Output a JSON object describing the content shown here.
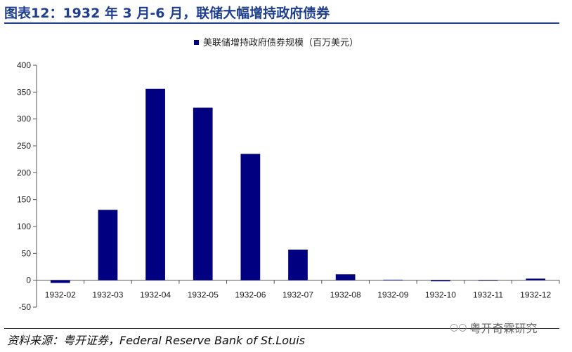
{
  "title": "图表12：1932 年 3 月-6 月，联储大幅增持政府债券",
  "source": "资料来源：粤开证券，Federal Reserve Bank of St.Louis",
  "watermark": "粤开奇霖研究",
  "colors": {
    "bar": "#000080",
    "title": "#1f3f8f"
  },
  "chart_data": {
    "type": "bar",
    "categories": [
      "1932-02",
      "1932-03",
      "1932-04",
      "1932-05",
      "1932-06",
      "1932-07",
      "1932-08",
      "1932-09",
      "1932-10",
      "1932-11",
      "1932-12"
    ],
    "series": [
      {
        "name": "美联储增持政府债券规模（百万美元）",
        "values": [
          -5,
          131,
          356,
          321,
          235,
          57,
          11,
          1,
          -2,
          0,
          3
        ]
      }
    ],
    "ylim": [
      -50,
      400
    ],
    "yticks": [
      -50,
      0,
      50,
      100,
      150,
      200,
      250,
      300,
      350,
      400
    ],
    "legend_position": "top-center",
    "grid": false
  }
}
